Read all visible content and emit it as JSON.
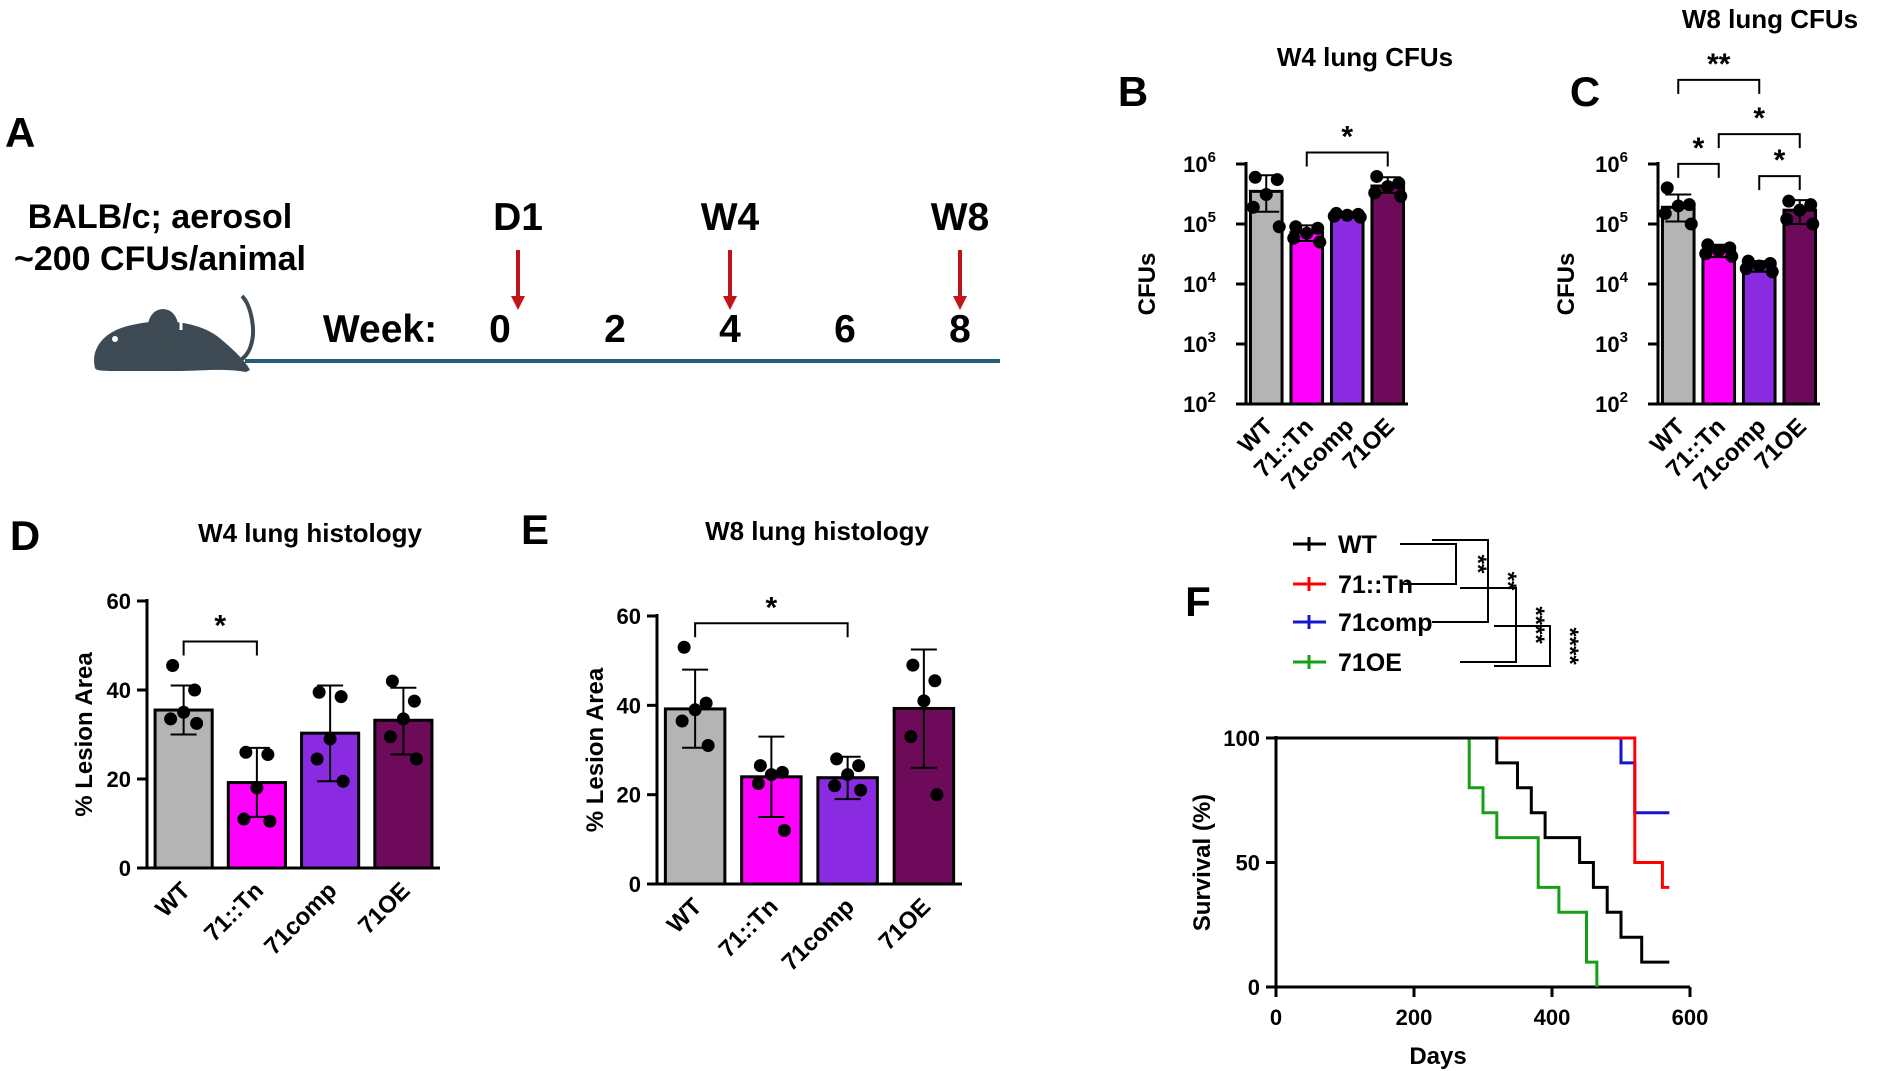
{
  "colors": {
    "WT": "#b4b4b4",
    "71::Tn": "#ff00ff",
    "71comp": "#8a2be2",
    "71OE": "#6e0a5a",
    "timeline": "#245d78",
    "arrow": "#c0141a",
    "mouse": "#3e4a53",
    "km_WT": "#000000",
    "km_71::Tn": "#ff0000",
    "km_71comp": "#1414d2",
    "km_71OE": "#16a016"
  },
  "panelA": {
    "letter": "A",
    "line1": "BALB/c; aerosol",
    "line2": "~200 CFUs/animal",
    "week_label": "Week:",
    "weeks": [
      "0",
      "2",
      "4",
      "6",
      "8"
    ],
    "markers": [
      {
        "label": "D1",
        "week": 0
      },
      {
        "label": "W4",
        "week": 4
      },
      {
        "label": "W8",
        "week": 8
      }
    ]
  },
  "chart_data": [
    {
      "panel": "B",
      "type": "bar",
      "scale": "log",
      "title": "W4 lung CFUs",
      "ylabel": "CFUs",
      "ylim": [
        100,
        1000000
      ],
      "yticks": [
        2,
        3,
        4,
        5,
        6
      ],
      "categories": [
        "WT",
        "71::Tn",
        "71comp",
        "71OE"
      ],
      "values": [
        350000,
        72000,
        140000,
        430000
      ],
      "err_low": [
        160000,
        52000,
        130000,
        330000
      ],
      "err_high": [
        650000,
        95000,
        152000,
        600000
      ],
      "points": [
        [
          600000,
          550000,
          310000,
          190000,
          90000
        ],
        [
          90000,
          85000,
          70000,
          58000,
          50000
        ],
        [
          150000,
          145000,
          140000,
          135000,
          130000
        ],
        [
          620000,
          480000,
          420000,
          330000,
          290000
        ]
      ],
      "significance": [
        {
          "from": 1,
          "to": 3,
          "label": "*",
          "level": 1
        }
      ]
    },
    {
      "panel": "C",
      "type": "bar",
      "scale": "log",
      "title": "W8 lung CFUs",
      "ylabel": "CFUs",
      "ylim": [
        100,
        1000000
      ],
      "yticks": [
        2,
        3,
        4,
        5,
        6
      ],
      "categories": [
        "WT",
        "71::Tn",
        "71comp",
        "71OE"
      ],
      "values": [
        190000,
        35000,
        20000,
        170000
      ],
      "err_low": [
        110000,
        28000,
        16000,
        100000
      ],
      "err_high": [
        310000,
        45000,
        24000,
        250000
      ],
      "points": [
        [
          400000,
          210000,
          200000,
          150000,
          100000
        ],
        [
          45000,
          40000,
          36000,
          32000,
          29000
        ],
        [
          24000,
          22000,
          20000,
          18000,
          16000
        ],
        [
          240000,
          210000,
          170000,
          120000,
          100000
        ]
      ],
      "significance": [
        {
          "from": 0,
          "to": 1,
          "label": "*",
          "level": 1
        },
        {
          "from": 1,
          "to": 3,
          "label": "*",
          "level": 2
        },
        {
          "from": 2,
          "to": 3,
          "label": "*",
          "level": 1
        },
        {
          "from": 0,
          "to": 2,
          "label": "**",
          "level": 3
        }
      ]
    },
    {
      "panel": "D",
      "type": "bar",
      "scale": "linear",
      "title": "W4 lung histology",
      "ylabel": "% Lesion Area",
      "ylim": [
        0,
        60
      ],
      "yticks": [
        0,
        20,
        40,
        60
      ],
      "categories": [
        "WT",
        "71::Tn",
        "71comp",
        "71OE"
      ],
      "values": [
        35.5,
        19.2,
        30.3,
        33.2
      ],
      "err_low": [
        30,
        11.5,
        19.5,
        25.5
      ],
      "err_high": [
        41,
        27,
        41,
        40.5
      ],
      "points": [
        [
          45.5,
          40,
          35,
          33.5,
          32.5
        ],
        [
          26,
          25.5,
          18,
          11,
          10.5
        ],
        [
          39.5,
          38.5,
          29,
          24.5,
          19.5
        ],
        [
          42,
          37.5,
          33.5,
          29.5,
          24.5
        ]
      ],
      "significance": [
        {
          "from": 0,
          "to": 1,
          "label": "*",
          "level": 1
        }
      ]
    },
    {
      "panel": "E",
      "type": "bar",
      "scale": "linear",
      "title": "W8 lung histology",
      "ylabel": "% Lesion Area",
      "ylim": [
        0,
        60
      ],
      "yticks": [
        0,
        20,
        40,
        60
      ],
      "categories": [
        "WT",
        "71::Tn",
        "71comp",
        "71OE"
      ],
      "values": [
        39.2,
        24,
        23.8,
        39.3
      ],
      "err_low": [
        30.5,
        15,
        19,
        26
      ],
      "err_high": [
        48,
        33,
        28.5,
        52.5
      ],
      "points": [
        [
          53,
          40.5,
          39,
          36.5,
          31
        ],
        [
          26.5,
          25,
          24.5,
          22.5,
          12
        ],
        [
          28,
          26.5,
          24.5,
          22,
          21
        ],
        [
          49,
          45.5,
          41,
          33,
          20
        ]
      ],
      "significance": [
        {
          "from": 0,
          "to": 2,
          "label": "*",
          "level": 1
        }
      ]
    },
    {
      "panel": "F",
      "type": "line",
      "subtype": "kaplan-meier",
      "title": "",
      "xlabel": "Days",
      "ylabel": "Survival (%)",
      "xlim": [
        0,
        600
      ],
      "ylim": [
        0,
        100
      ],
      "xticks": [
        0,
        200,
        400,
        600
      ],
      "yticks": [
        0,
        50,
        100
      ],
      "series": [
        {
          "name": "WT",
          "x": [
            0,
            290,
            320,
            350,
            370,
            390,
            420,
            440,
            460,
            480,
            500,
            530,
            570
          ],
          "y": [
            100,
            100,
            90,
            80,
            70,
            60,
            60,
            50,
            40,
            30,
            20,
            10,
            10
          ]
        },
        {
          "name": "71::Tn",
          "x": [
            0,
            510,
            520,
            560,
            570
          ],
          "y": [
            100,
            100,
            50,
            40,
            40
          ]
        },
        {
          "name": "71comp",
          "x": [
            0,
            490,
            500,
            520,
            570
          ],
          "y": [
            100,
            100,
            90,
            70,
            70
          ]
        },
        {
          "name": "71OE",
          "x": [
            0,
            265,
            280,
            300,
            320,
            360,
            380,
            410,
            450,
            465
          ],
          "y": [
            100,
            100,
            80,
            70,
            60,
            60,
            40,
            30,
            10,
            0
          ]
        }
      ],
      "comparisons": [
        {
          "pair": [
            "WT",
            "71::Tn"
          ],
          "label": "**"
        },
        {
          "pair": [
            "WT",
            "71comp"
          ],
          "label": "**"
        },
        {
          "pair": [
            "71::Tn",
            "71OE"
          ],
          "label": "****"
        },
        {
          "pair": [
            "71comp",
            "71OE"
          ],
          "label": "****"
        }
      ]
    }
  ]
}
